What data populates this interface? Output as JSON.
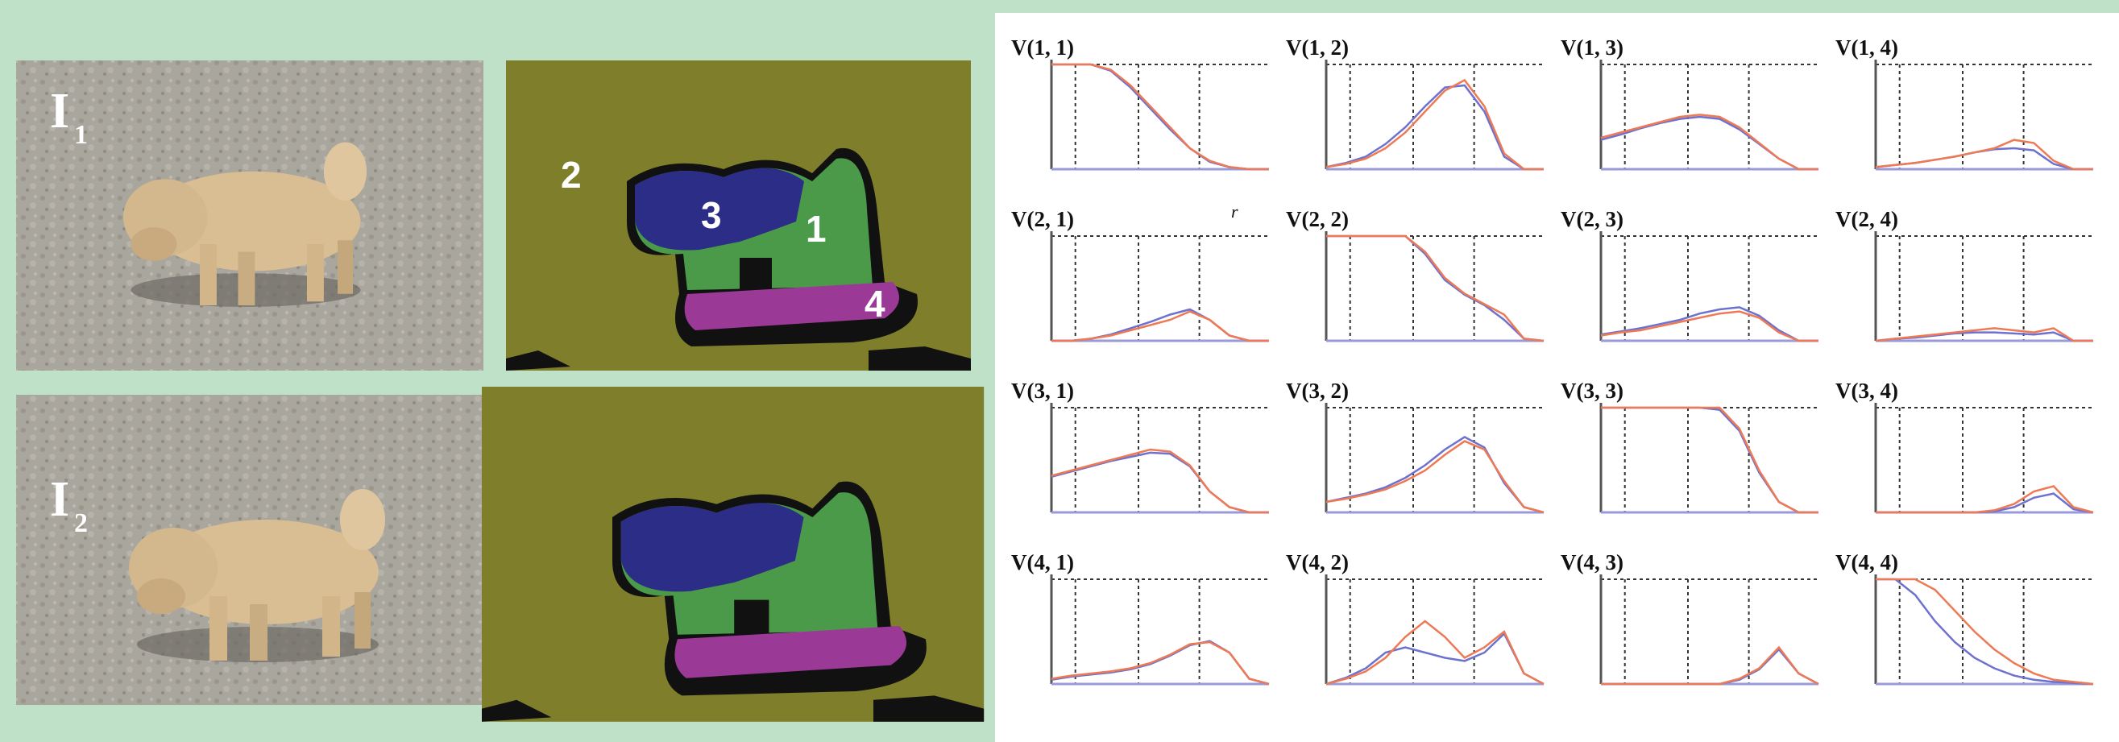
{
  "figure": {
    "images": [
      {
        "label": "I",
        "subscript": "1"
      },
      {
        "label": "I",
        "subscript": "2"
      }
    ],
    "segments": [
      "2",
      "3",
      "1",
      "4"
    ],
    "plots": {
      "axis_label": "r",
      "red_color": "#ee7a55",
      "blue_color": "#6d72cf",
      "panels": [
        {
          "title": "V(1, 1)",
          "red": [
            1,
            1,
            1,
            0.95,
            0.8,
            0.6,
            0.4,
            0.2,
            0.08,
            0.02,
            0,
            0
          ],
          "blue": [
            1,
            1,
            1,
            0.94,
            0.78,
            0.58,
            0.38,
            0.2,
            0.07,
            0.02,
            0,
            0
          ]
        },
        {
          "title": "V(1, 2)",
          "red": [
            0.02,
            0.05,
            0.1,
            0.2,
            0.35,
            0.55,
            0.75,
            0.85,
            0.6,
            0.15,
            0,
            0
          ],
          "blue": [
            0.02,
            0.06,
            0.12,
            0.24,
            0.4,
            0.6,
            0.78,
            0.8,
            0.55,
            0.12,
            0,
            0
          ]
        },
        {
          "title": "V(1, 3)",
          "red": [
            0.3,
            0.35,
            0.4,
            0.45,
            0.5,
            0.52,
            0.5,
            0.4,
            0.25,
            0.1,
            0,
            0
          ],
          "blue": [
            0.28,
            0.33,
            0.39,
            0.44,
            0.48,
            0.5,
            0.48,
            0.38,
            0.24,
            0.1,
            0,
            0
          ]
        },
        {
          "title": "V(1, 4)",
          "red": [
            0.02,
            0.04,
            0.06,
            0.09,
            0.12,
            0.16,
            0.2,
            0.28,
            0.25,
            0.08,
            0,
            0
          ],
          "blue": [
            0.02,
            0.04,
            0.06,
            0.09,
            0.12,
            0.16,
            0.19,
            0.2,
            0.18,
            0.05,
            0,
            0
          ]
        },
        {
          "title": "V(2, 1)",
          "red": [
            0,
            0,
            0.02,
            0.05,
            0.1,
            0.15,
            0.2,
            0.28,
            0.2,
            0.05,
            0,
            0
          ],
          "blue": [
            0,
            0,
            0.02,
            0.06,
            0.12,
            0.18,
            0.25,
            0.3,
            0.2,
            0.05,
            0,
            0
          ]
        },
        {
          "title": "V(2, 2)",
          "red": [
            1,
            1,
            1,
            1,
            1,
            0.85,
            0.6,
            0.45,
            0.35,
            0.25,
            0.02,
            0
          ],
          "blue": [
            1,
            1,
            1,
            1,
            1,
            0.83,
            0.58,
            0.44,
            0.34,
            0.2,
            0.02,
            0
          ]
        },
        {
          "title": "V(2, 3)",
          "red": [
            0.05,
            0.08,
            0.1,
            0.14,
            0.18,
            0.22,
            0.26,
            0.28,
            0.22,
            0.08,
            0,
            0
          ],
          "blue": [
            0.06,
            0.09,
            0.12,
            0.16,
            0.2,
            0.26,
            0.3,
            0.32,
            0.24,
            0.1,
            0,
            0
          ]
        },
        {
          "title": "V(2, 4)",
          "red": [
            0,
            0.02,
            0.04,
            0.06,
            0.08,
            0.1,
            0.12,
            0.1,
            0.08,
            0.12,
            0,
            0
          ],
          "blue": [
            0,
            0.02,
            0.03,
            0.05,
            0.07,
            0.08,
            0.08,
            0.07,
            0.06,
            0.08,
            0,
            0
          ]
        },
        {
          "title": "V(3, 1)",
          "red": [
            0.35,
            0.4,
            0.45,
            0.5,
            0.55,
            0.6,
            0.58,
            0.45,
            0.2,
            0.05,
            0,
            0
          ],
          "blue": [
            0.34,
            0.39,
            0.44,
            0.49,
            0.53,
            0.57,
            0.56,
            0.44,
            0.2,
            0.05,
            0,
            0
          ]
        },
        {
          "title": "V(3, 2)",
          "red": [
            0.1,
            0.13,
            0.17,
            0.22,
            0.3,
            0.4,
            0.55,
            0.68,
            0.6,
            0.3,
            0.05,
            0
          ],
          "blue": [
            0.1,
            0.14,
            0.18,
            0.24,
            0.33,
            0.45,
            0.6,
            0.72,
            0.62,
            0.28,
            0.05,
            0
          ]
        },
        {
          "title": "V(3, 3)",
          "red": [
            1,
            1,
            1,
            1,
            1,
            1,
            1,
            0.8,
            0.4,
            0.1,
            0,
            0
          ],
          "blue": [
            1,
            1,
            1,
            1,
            1,
            1,
            0.98,
            0.78,
            0.38,
            0.1,
            0,
            0
          ]
        },
        {
          "title": "V(3, 4)",
          "red": [
            0,
            0,
            0,
            0,
            0,
            0,
            0.02,
            0.08,
            0.2,
            0.25,
            0.05,
            0
          ],
          "blue": [
            0,
            0,
            0,
            0,
            0,
            0,
            0.01,
            0.05,
            0.14,
            0.18,
            0.03,
            0
          ]
        },
        {
          "title": "V(4, 1)",
          "red": [
            0.05,
            0.08,
            0.1,
            0.12,
            0.15,
            0.2,
            0.28,
            0.38,
            0.4,
            0.3,
            0.05,
            0
          ],
          "blue": [
            0.04,
            0.07,
            0.09,
            0.11,
            0.14,
            0.19,
            0.27,
            0.37,
            0.41,
            0.3,
            0.05,
            0
          ]
        },
        {
          "title": "V(4, 2)",
          "red": [
            0,
            0.05,
            0.12,
            0.25,
            0.45,
            0.6,
            0.45,
            0.25,
            0.35,
            0.5,
            0.1,
            0
          ],
          "blue": [
            0,
            0.06,
            0.15,
            0.3,
            0.35,
            0.3,
            0.25,
            0.22,
            0.3,
            0.48,
            0.1,
            0
          ]
        },
        {
          "title": "V(4, 3)",
          "red": [
            0,
            0,
            0,
            0,
            0,
            0,
            0,
            0.05,
            0.15,
            0.35,
            0.1,
            0
          ],
          "blue": [
            0,
            0,
            0,
            0,
            0,
            0,
            0,
            0.04,
            0.14,
            0.33,
            0.1,
            0
          ]
        },
        {
          "title": "V(4, 4)",
          "red": [
            1,
            1,
            1,
            0.9,
            0.7,
            0.5,
            0.33,
            0.2,
            0.1,
            0.04,
            0.02,
            0
          ],
          "blue": [
            1,
            1,
            0.85,
            0.6,
            0.4,
            0.25,
            0.15,
            0.08,
            0.04,
            0.02,
            0.01,
            0
          ]
        }
      ]
    }
  }
}
